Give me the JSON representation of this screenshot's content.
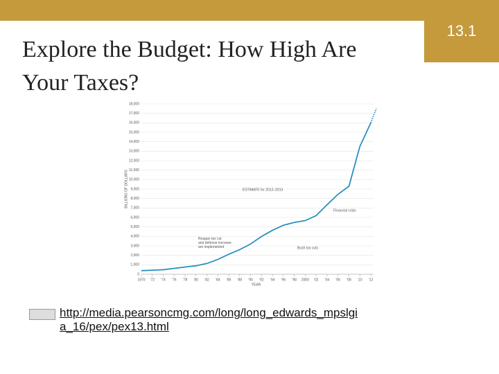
{
  "header": {
    "title_line1": "Explore the Budget: How High Are",
    "title_line2": "Your Taxes?",
    "section": "13.1"
  },
  "chart_data": {
    "type": "line",
    "y_label": "BILLIONS OF DOLLARS",
    "x_label": "YEAR",
    "color": "#2a8fc0",
    "grid": true,
    "x": [
      1970,
      1972,
      1974,
      1976,
      1978,
      1980,
      1982,
      1984,
      1986,
      1988,
      1990,
      1992,
      1994,
      1996,
      1998,
      2000,
      2002,
      2004,
      2006,
      2008,
      2010,
      2012
    ],
    "values": [
      380,
      430,
      480,
      620,
      770,
      900,
      1140,
      1570,
      2120,
      2600,
      3200,
      4000,
      4640,
      5180,
      5480,
      5670,
      6200,
      7350,
      8450,
      9300,
      13500,
      16000
    ],
    "estimate_x": [
      2012,
      2013
    ],
    "estimate_values": [
      16000,
      17500
    ],
    "xlim": [
      1970,
      2012
    ],
    "ylim": [
      0,
      18000
    ],
    "xticks": [
      {
        "value": 1970,
        "label": "1970"
      },
      {
        "value": 1972,
        "label": "'72"
      },
      {
        "value": 1974,
        "label": "'74"
      },
      {
        "value": 1976,
        "label": "'76"
      },
      {
        "value": 1978,
        "label": "'78"
      },
      {
        "value": 1980,
        "label": "'80"
      },
      {
        "value": 1982,
        "label": "'82"
      },
      {
        "value": 1984,
        "label": "'84"
      },
      {
        "value": 1986,
        "label": "'86"
      },
      {
        "value": 1988,
        "label": "'88"
      },
      {
        "value": 1990,
        "label": "'90"
      },
      {
        "value": 1992,
        "label": "'92"
      },
      {
        "value": 1994,
        "label": "'94"
      },
      {
        "value": 1996,
        "label": "'96"
      },
      {
        "value": 1998,
        "label": "'98"
      },
      {
        "value": 2000,
        "label": "2000"
      },
      {
        "value": 2002,
        "label": "'02"
      },
      {
        "value": 2004,
        "label": "'04"
      },
      {
        "value": 2006,
        "label": "'06"
      },
      {
        "value": 2008,
        "label": "'08"
      },
      {
        "value": 2010,
        "label": "'10"
      },
      {
        "value": 2012,
        "label": "'12"
      }
    ],
    "yticks": [
      0,
      {
        "value": 1000,
        "label": "1,000"
      },
      {
        "value": 2000,
        "label": "2,000"
      },
      {
        "value": 3000,
        "label": "3,000"
      },
      {
        "value": 4000,
        "label": "4,000"
      },
      {
        "value": 5000,
        "label": "5,000"
      },
      {
        "value": 6000,
        "label": "6,000"
      },
      {
        "value": 7000,
        "label": "7,000"
      },
      {
        "value": 8000,
        "label": "8,000"
      },
      {
        "value": 9000,
        "label": "9,000"
      },
      {
        "value": 10000,
        "label": "10,000"
      },
      {
        "value": 11000,
        "label": "11,000"
      },
      {
        "value": 12000,
        "label": "12,000"
      },
      {
        "value": 13000,
        "label": "13,000"
      },
      {
        "value": 14000,
        "label": "14,000"
      },
      {
        "value": 15000,
        "label": "15,000"
      },
      {
        "value": 16000,
        "label": "16,000"
      },
      {
        "value": 17000,
        "label": "17,000"
      },
      {
        "value": 18000,
        "label": "18,000"
      }
    ],
    "annotations": [
      "ESTIMATE for 2012–2013",
      "Financial crisis",
      "Reagan tax cut and defense increase are implemented",
      "Bush tax cuts"
    ]
  },
  "link": {
    "line1": "http://media.pearsoncmg.com/long/long_edwards_mpslgi",
    "line2": "a_16/pex/pex13.html"
  }
}
